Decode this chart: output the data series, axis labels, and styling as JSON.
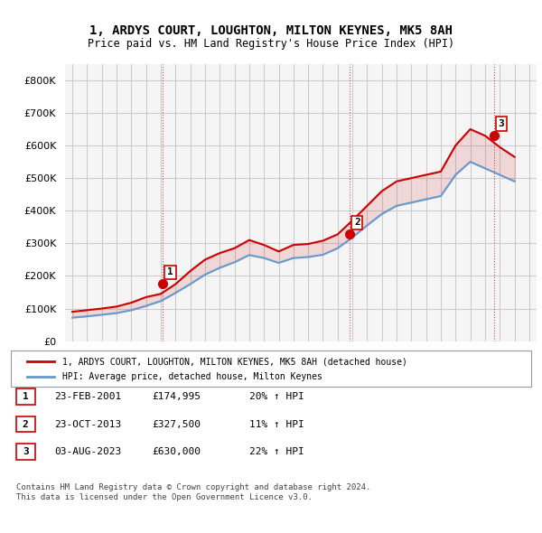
{
  "title": "1, ARDYS COURT, LOUGHTON, MILTON KEYNES, MK5 8AH",
  "subtitle": "Price paid vs. HM Land Registry's House Price Index (HPI)",
  "legend_line1": "1, ARDYS COURT, LOUGHTON, MILTON KEYNES, MK5 8AH (detached house)",
  "legend_line2": "HPI: Average price, detached house, Milton Keynes",
  "transactions": [
    {
      "num": 1,
      "date": "23-FEB-2001",
      "price": "£174,995",
      "change": "20% ↑ HPI"
    },
    {
      "num": 2,
      "date": "23-OCT-2013",
      "price": "£327,500",
      "change": "11% ↑ HPI"
    },
    {
      "num": 3,
      "date": "03-AUG-2023",
      "price": "£630,000",
      "change": "22% ↑ HPI"
    }
  ],
  "footer": "Contains HM Land Registry data © Crown copyright and database right 2024.\nThis data is licensed under the Open Government Licence v3.0.",
  "red_color": "#cc0000",
  "blue_color": "#6699cc",
  "marker_color_red": "#cc0000",
  "marker_color_blue": "#6699cc",
  "bg_color": "#f5f5f5",
  "grid_color": "#cccccc",
  "ylim": [
    0,
    850000
  ],
  "yticks": [
    0,
    100000,
    200000,
    300000,
    400000,
    500000,
    600000,
    700000,
    800000
  ],
  "ylabel_fmt": "£{0}K",
  "transaction_years": [
    2001.14,
    2013.81,
    2023.59
  ],
  "transaction_prices": [
    174995,
    327500,
    630000
  ],
  "hpi_years": [
    1995,
    1996,
    1997,
    1998,
    1999,
    2000,
    2001,
    2002,
    2003,
    2004,
    2005,
    2006,
    2007,
    2008,
    2009,
    2010,
    2011,
    2012,
    2013,
    2014,
    2015,
    2016,
    2017,
    2018,
    2019,
    2020,
    2021,
    2022,
    2023,
    2024,
    2025
  ],
  "hpi_prices": [
    72000,
    76000,
    81000,
    86000,
    95000,
    108000,
    123000,
    148000,
    175000,
    204000,
    225000,
    242000,
    264000,
    255000,
    240000,
    255000,
    258000,
    265000,
    285000,
    318000,
    355000,
    390000,
    415000,
    425000,
    435000,
    445000,
    510000,
    550000,
    530000,
    510000,
    490000
  ],
  "red_years": [
    1995,
    1996,
    1997,
    1998,
    1999,
    2000,
    2001,
    2002,
    2003,
    2004,
    2005,
    2006,
    2007,
    2008,
    2009,
    2010,
    2011,
    2012,
    2013,
    2014,
    2015,
    2016,
    2017,
    2018,
    2019,
    2020,
    2021,
    2022,
    2023,
    2024,
    2025
  ],
  "red_prices": [
    90000,
    95000,
    100000,
    106000,
    118000,
    135000,
    145000,
    175000,
    215000,
    250000,
    270000,
    285000,
    310000,
    295000,
    275000,
    295000,
    298000,
    308000,
    327500,
    370000,
    415000,
    460000,
    490000,
    500000,
    510000,
    520000,
    600000,
    650000,
    630000,
    595000,
    565000
  ]
}
